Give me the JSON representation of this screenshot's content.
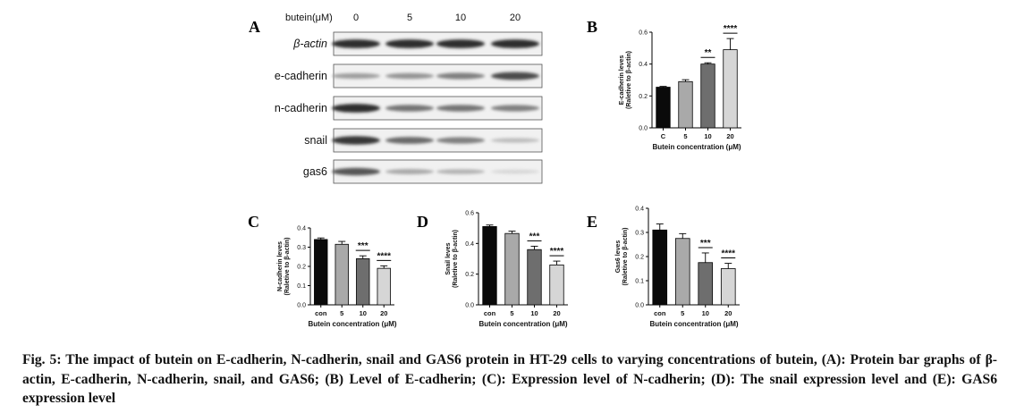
{
  "figure": {
    "caption": "Fig. 5: The impact of butein on E-cadherin, N-cadherin, snail and GAS6 protein in HT-29 cells to varying concentrations of butein, (A): Protein bar graphs of β-actin, E-cadherin, N-cadherin, snail, and GAS6; (B) Level of E-cadherin; (C): Expression level of N-cadherin; (D): The snail expression level and (E): GAS6 expression level"
  },
  "western_blot": {
    "panel": "A",
    "concentration_header": "butein(μM)",
    "concentrations": [
      "0",
      "5",
      "10",
      "20"
    ],
    "proteins": [
      {
        "name": "β-actin",
        "intensity": [
          0.9,
          0.9,
          0.9,
          0.9
        ]
      },
      {
        "name": "e-cadherin",
        "intensity": [
          0.35,
          0.4,
          0.5,
          0.75
        ]
      },
      {
        "name": "n-cadherin",
        "intensity": [
          0.9,
          0.55,
          0.55,
          0.5
        ]
      },
      {
        "name": "snail",
        "intensity": [
          0.85,
          0.6,
          0.5,
          0.2
        ]
      },
      {
        "name": "gas6",
        "intensity": [
          0.7,
          0.3,
          0.25,
          0.08
        ]
      }
    ]
  },
  "colors": {
    "bars": [
      "#0a0a0a",
      "#a9a9a9",
      "#6e6e6e",
      "#d6d6d6"
    ],
    "axis": "#000000"
  },
  "chart_data": [
    {
      "panel": "B",
      "type": "bar",
      "categories": [
        "C",
        "5",
        "10",
        "20"
      ],
      "values": [
        0.255,
        0.29,
        0.4,
        0.49
      ],
      "errors": [
        0.005,
        0.012,
        0.008,
        0.07
      ],
      "ylim": [
        0,
        0.6
      ],
      "yticks": [
        "0.0",
        "0.2",
        "0.4",
        "0.6"
      ],
      "ytick_values": [
        0,
        0.2,
        0.4,
        0.6
      ],
      "xlabel": "Butein concentration (μM)",
      "ylabel": "E-cadherin leves",
      "ylabel2": "(Raletive to β-actin)",
      "significance": [
        {
          "index": 2,
          "label": "**"
        },
        {
          "index": 3,
          "label": "****"
        }
      ]
    },
    {
      "panel": "C",
      "type": "bar",
      "categories": [
        "con",
        "5",
        "10",
        "20"
      ],
      "values": [
        0.34,
        0.315,
        0.24,
        0.19
      ],
      "errors": [
        0.008,
        0.015,
        0.015,
        0.013
      ],
      "ylim": [
        0,
        0.4
      ],
      "yticks": [
        "0.0",
        "0.1",
        "0.2",
        "0.3",
        "0.4"
      ],
      "ytick_values": [
        0,
        0.1,
        0.2,
        0.3,
        0.4
      ],
      "xlabel": "Butein concentration (μM)",
      "ylabel": "N-cadherin leves",
      "ylabel2": "(Raletive to β-actin)",
      "significance": [
        {
          "index": 2,
          "label": "***"
        },
        {
          "index": 3,
          "label": "****"
        }
      ]
    },
    {
      "panel": "D",
      "type": "bar",
      "categories": [
        "con",
        "5",
        "10",
        "20"
      ],
      "values": [
        0.51,
        0.465,
        0.36,
        0.26
      ],
      "errors": [
        0.01,
        0.015,
        0.022,
        0.025
      ],
      "ylim": [
        0,
        0.6
      ],
      "yticks": [
        "0.0",
        "0.2",
        "0.4",
        "0.6"
      ],
      "ytick_values": [
        0,
        0.2,
        0.4,
        0.6
      ],
      "xlabel": "Butein concentration (μM)",
      "ylabel": "Snail leves",
      "ylabel2": "(Raletive to β-actin)",
      "significance": [
        {
          "index": 2,
          "label": "***"
        },
        {
          "index": 3,
          "label": "****"
        }
      ]
    },
    {
      "panel": "E",
      "type": "bar",
      "categories": [
        "con",
        "5",
        "10",
        "20"
      ],
      "values": [
        0.31,
        0.275,
        0.175,
        0.15
      ],
      "errors": [
        0.025,
        0.02,
        0.04,
        0.022
      ],
      "ylim": [
        0,
        0.4
      ],
      "yticks": [
        "0.0",
        "0.1",
        "0.2",
        "0.3",
        "0.4"
      ],
      "ytick_values": [
        0,
        0.1,
        0.2,
        0.3,
        0.4
      ],
      "xlabel": "Butein concentration (μM)",
      "ylabel": "Gas6 leves",
      "ylabel2": "(Raletive to β-actin)",
      "significance": [
        {
          "index": 2,
          "label": "***"
        },
        {
          "index": 3,
          "label": "****"
        }
      ]
    }
  ]
}
